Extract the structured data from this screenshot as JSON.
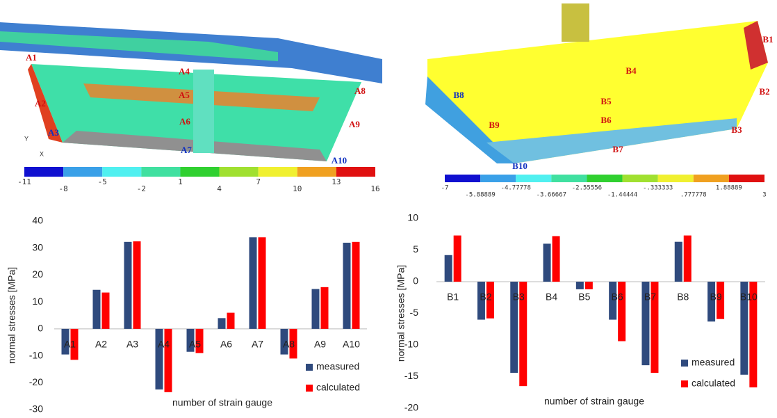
{
  "models": [
    {
      "gauge_labels": [
        "A1",
        "A2",
        "A3",
        "A4",
        "A5",
        "A6",
        "A7",
        "A8",
        "A9",
        "A10"
      ],
      "axis_labels": [
        "Y",
        "X"
      ],
      "colorbar": {
        "ticks": [
          -11,
          -8,
          -5,
          -2,
          1,
          4,
          7,
          10,
          13,
          16
        ],
        "colors": [
          "#1010d0",
          "#3aa0e8",
          "#50f0f0",
          "#40e0a0",
          "#30d030",
          "#a0e030",
          "#f0f030",
          "#f0a020",
          "#e01010"
        ]
      }
    },
    {
      "gauge_labels": [
        "B1",
        "B2",
        "B3",
        "B4",
        "B5",
        "B6",
        "B7",
        "B8",
        "B9",
        "B10"
      ],
      "colorbar": {
        "ticks": [
          "-7",
          "-5.88889",
          "-4.77778",
          "-3.66667",
          "-2.55556",
          "-1.44444",
          "-.333333",
          ".777778",
          "1.88889",
          "3"
        ],
        "colors": [
          "#1010d0",
          "#3aa0e8",
          "#50f0f0",
          "#40e0a0",
          "#30d030",
          "#a0e030",
          "#f0f030",
          "#f0a020",
          "#e01010"
        ]
      }
    }
  ],
  "chart_data": [
    {
      "type": "bar",
      "y_label": "normal stresses  [MPa]",
      "x_label": "number of strain gauge",
      "categories": [
        "A1",
        "A2",
        "A3",
        "A4",
        "A5",
        "A6",
        "A7",
        "A8",
        "A9",
        "A10"
      ],
      "series": [
        {
          "name": "measured",
          "color": "#2f4a7d",
          "values": [
            -9.5,
            14.5,
            32.3,
            -22.5,
            -8.5,
            4,
            34,
            -9.5,
            14.8,
            32
          ]
        },
        {
          "name": "calculated",
          "color": "#ff0000",
          "values": [
            -11.5,
            13.5,
            32.5,
            -23.5,
            -9,
            6,
            34,
            -11,
            15.5,
            32.3
          ]
        }
      ],
      "ylim": [
        -30,
        40
      ],
      "yticks": [
        -30,
        -20,
        -10,
        0,
        10,
        20,
        30,
        40
      ],
      "legend": "lower right"
    },
    {
      "type": "bar",
      "y_label": "normal stresses  [MPa]",
      "x_label": "number of strain gauge",
      "categories": [
        "B1",
        "B2",
        "B3",
        "B4",
        "B5",
        "B6",
        "B7",
        "B8",
        "B9",
        "B10"
      ],
      "series": [
        {
          "name": "measured",
          "color": "#2f4a7d",
          "values": [
            4.2,
            -6,
            -14.4,
            6,
            -1.2,
            -6,
            -13.2,
            6.3,
            -6.3,
            -14.7
          ]
        },
        {
          "name": "calculated",
          "color": "#ff0000",
          "values": [
            7.3,
            -5.8,
            -16.5,
            7.2,
            -1.2,
            -9.4,
            -14.4,
            7.3,
            -5.9,
            -16.7
          ]
        }
      ],
      "ylim": [
        -20,
        10
      ],
      "yticks": [
        -20,
        -15,
        -10,
        -5,
        0,
        5,
        10
      ],
      "legend": "lower right"
    }
  ]
}
